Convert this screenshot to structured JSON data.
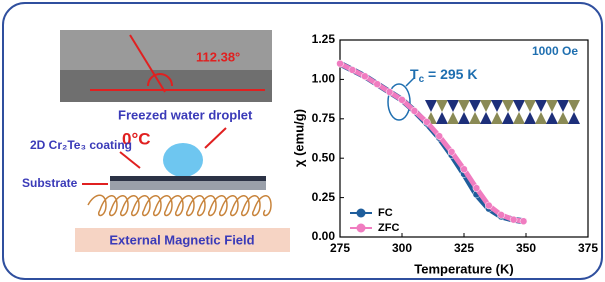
{
  "diagram": {
    "angle_label": "112.38°",
    "droplet_label": "Freezed water droplet",
    "temperature_label": "0°C",
    "coating_label": "2D Cr₂Te₃ coating",
    "substrate_label": "Substrate",
    "field_label": "External Magnetic Field"
  },
  "chart_data": {
    "type": "line",
    "x_label": "Temperature (K)",
    "y_label": "χ (emu/g)",
    "annotations": [
      "1000 Oe",
      "T",
      "c",
      " = 295 K"
    ],
    "x": [
      275,
      280,
      285,
      290,
      295,
      300,
      305,
      310,
      315,
      320,
      325,
      330,
      335,
      340,
      345,
      349
    ],
    "series": [
      {
        "name": "FC",
        "color": "#1f5e9c",
        "values": [
          1.1,
          1.06,
          1.02,
          0.97,
          0.92,
          0.87,
          0.8,
          0.72,
          0.63,
          0.52,
          0.4,
          0.27,
          0.18,
          0.13,
          0.11,
          0.1
        ]
      },
      {
        "name": "ZFC",
        "color": "#f07cc0",
        "values": [
          1.1,
          1.06,
          1.02,
          0.97,
          0.92,
          0.87,
          0.8,
          0.73,
          0.64,
          0.54,
          0.43,
          0.31,
          0.2,
          0.14,
          0.11,
          0.1
        ]
      }
    ],
    "xlim": [
      275,
      375
    ],
    "xticks": [
      275,
      300,
      325,
      350,
      375
    ],
    "ylim": [
      0,
      1.25
    ],
    "yticks": [
      {
        "value": 0,
        "label": "0.00"
      },
      0.25,
      {
        "value": 0.5,
        "label": "0.50"
      },
      0.75,
      {
        "value": 1,
        "label": "1.00"
      },
      1.25
    ],
    "legend": "lower left"
  }
}
